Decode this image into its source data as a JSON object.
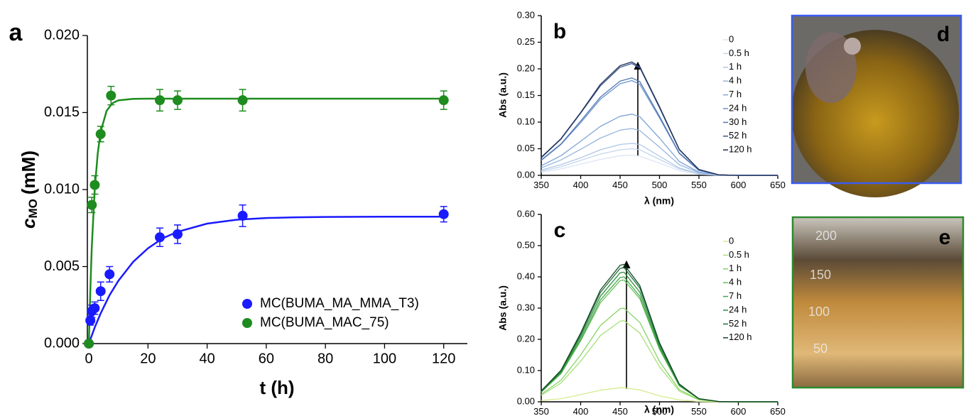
{
  "chart_data": [
    {
      "type": "scatter",
      "panel_label": "a",
      "xlabel": "t (h)",
      "ylabel_var": "c",
      "ylabel_sub": "MO",
      "ylabel_unit": "(mM)",
      "xlim": [
        -0.5,
        128
      ],
      "ylim": [
        0,
        0.02
      ],
      "xticks": [
        0,
        20,
        40,
        60,
        80,
        100,
        120
      ],
      "yticks": [
        {
          "value": 0,
          "label": "0.000"
        },
        {
          "value": 0.005,
          "label": "0.005"
        },
        {
          "value": 0.01,
          "label": "0.010"
        },
        {
          "value": 0.015,
          "label": "0.015"
        },
        {
          "value": 0.02,
          "label": "0.020"
        }
      ],
      "legend": "lower right",
      "series": [
        {
          "name": "MC(BUMA_MA_MMA_T3)",
          "color": "#1a1aff",
          "x": [
            0,
            0.5,
            1,
            2,
            4,
            7,
            24,
            30,
            52,
            120
          ],
          "values": [
            0,
            0.0015,
            0.0021,
            0.0023,
            0.0034,
            0.0045,
            0.0069,
            0.0071,
            0.0083,
            0.0084
          ],
          "errors": [
            0,
            0.0003,
            0.0004,
            0.0004,
            0.0006,
            0.0005,
            0.0006,
            0.0006,
            0.0007,
            0.0005
          ]
        },
        {
          "name": "MC(BUMA_MAC_75)",
          "color": "#1e8c1e",
          "x": [
            0,
            1,
            2,
            4,
            7.5,
            24,
            30,
            52,
            120
          ],
          "values": [
            0,
            0.009,
            0.0103,
            0.0136,
            0.0161,
            0.0158,
            0.0158,
            0.0158,
            0.0158
          ],
          "errors": [
            0,
            0.0005,
            0.0006,
            0.0005,
            0.0006,
            0.0007,
            0.0006,
            0.0007,
            0.0006
          ]
        }
      ],
      "fits": [
        {
          "color": "#1a1aff",
          "x": [
            0,
            2,
            4,
            7,
            10,
            15,
            20,
            25,
            30,
            40,
            50,
            60,
            70,
            80,
            100,
            120
          ],
          "values": [
            0,
            0.00105,
            0.00196,
            0.00314,
            0.00408,
            0.00531,
            0.00619,
            0.00684,
            0.00726,
            0.00779,
            0.00804,
            0.00815,
            0.0082,
            0.00822,
            0.00824,
            0.00824
          ]
        },
        {
          "color": "#1e8c1e",
          "x": [
            0,
            0.5,
            1,
            2,
            3,
            4,
            6,
            8,
            10,
            15,
            20,
            30,
            60,
            120
          ],
          "values": [
            0,
            0.00352,
            0.00625,
            0.01005,
            0.01235,
            0.01375,
            0.01511,
            0.01561,
            0.01579,
            0.01589,
            0.0159,
            0.0159,
            0.0159,
            0.0159
          ]
        }
      ]
    },
    {
      "type": "line",
      "panel_label": "b",
      "xlabel": "λ (nm)",
      "ylabel": "Abs (a.u.)",
      "xlim": [
        350,
        650
      ],
      "ylim": [
        0,
        0.3
      ],
      "xticks": [
        350,
        400,
        450,
        500,
        550,
        600,
        650
      ],
      "yticks": [
        {
          "value": 0,
          "label": "0.00"
        },
        {
          "value": 0.05,
          "label": "0.05"
        },
        {
          "value": 0.1,
          "label": "0.10"
        },
        {
          "value": 0.15,
          "label": "0.15"
        },
        {
          "value": 0.2,
          "label": "0.20"
        },
        {
          "value": 0.25,
          "label": "0.25"
        },
        {
          "value": 0.3,
          "label": "0.30"
        }
      ],
      "legend": "upper right",
      "x": [
        350,
        375,
        400,
        425,
        450,
        465,
        475,
        500,
        525,
        550,
        575,
        600,
        625,
        650
      ],
      "series": [
        {
          "name": "0",
          "color": "#dbe6f5",
          "values": [
            0.006,
            0.012,
            0.021,
            0.03,
            0.037,
            0.038,
            0.036,
            0.023,
            0.009,
            0.002,
            0,
            0,
            0,
            0
          ]
        },
        {
          "name": "0.5 h",
          "color": "#c5d6ee",
          "values": [
            0.008,
            0.016,
            0.028,
            0.04,
            0.048,
            0.05,
            0.048,
            0.03,
            0.012,
            0.003,
            0,
            0,
            0,
            0
          ]
        },
        {
          "name": "1 h",
          "color": "#aec6e6",
          "values": [
            0.01,
            0.02,
            0.033,
            0.048,
            0.058,
            0.06,
            0.058,
            0.036,
            0.014,
            0.003,
            0,
            0,
            0,
            0
          ]
        },
        {
          "name": "4 h",
          "color": "#97b5de",
          "values": [
            0.014,
            0.029,
            0.049,
            0.07,
            0.085,
            0.088,
            0.084,
            0.053,
            0.02,
            0.005,
            0.001,
            0,
            0,
            0
          ]
        },
        {
          "name": "7 h",
          "color": "#7fa4d6",
          "values": [
            0.018,
            0.037,
            0.064,
            0.092,
            0.111,
            0.115,
            0.11,
            0.07,
            0.026,
            0.006,
            0.001,
            0,
            0,
            0
          ]
        },
        {
          "name": "24 h",
          "color": "#6a93cc",
          "values": [
            0.028,
            0.058,
            0.099,
            0.143,
            0.172,
            0.178,
            0.171,
            0.108,
            0.041,
            0.009,
            0.001,
            0,
            0,
            0
          ]
        },
        {
          "name": "30 h",
          "color": "#5077b4",
          "values": [
            0.029,
            0.059,
            0.102,
            0.147,
            0.177,
            0.183,
            0.176,
            0.111,
            0.042,
            0.01,
            0.001,
            0,
            0,
            0
          ]
        },
        {
          "name": "52 h",
          "color": "#3a5a94",
          "values": [
            0.033,
            0.068,
            0.117,
            0.168,
            0.203,
            0.21,
            0.202,
            0.127,
            0.048,
            0.011,
            0.001,
            0,
            0,
            0
          ]
        },
        {
          "name": "120 h",
          "color": "#1f2f55",
          "values": [
            0.034,
            0.069,
            0.118,
            0.171,
            0.206,
            0.213,
            0.204,
            0.129,
            0.049,
            0.011,
            0.001,
            0,
            0,
            0
          ]
        }
      ]
    },
    {
      "type": "line",
      "panel_label": "c",
      "xlabel": "λ (nm)",
      "ylabel": "Abs (a.u.)",
      "xlim": [
        350,
        650
      ],
      "ylim": [
        0,
        0.6
      ],
      "xticks": [
        350,
        400,
        450,
        500,
        550,
        600,
        650
      ],
      "yticks": [
        {
          "value": 0,
          "label": "0.00"
        },
        {
          "value": 0.1,
          "label": "0.10"
        },
        {
          "value": 0.2,
          "label": "0.20"
        },
        {
          "value": 0.3,
          "label": "0.30"
        },
        {
          "value": 0.4,
          "label": "0.40"
        },
        {
          "value": 0.5,
          "label": "0.50"
        },
        {
          "value": 0.6,
          "label": "0.60"
        }
      ],
      "legend": "upper right",
      "x": [
        350,
        375,
        400,
        425,
        450,
        455,
        475,
        500,
        525,
        550,
        575,
        600,
        625,
        650
      ],
      "series": [
        {
          "name": "0",
          "color": "#d6ec8e",
          "values": [
            0.004,
            0.01,
            0.023,
            0.037,
            0.045,
            0.045,
            0.038,
            0.019,
            0.006,
            0.001,
            0,
            0,
            0,
            0
          ]
        },
        {
          "name": "0.5 h",
          "color": "#a8e07a",
          "values": [
            0.021,
            0.06,
            0.13,
            0.212,
            0.258,
            0.26,
            0.22,
            0.112,
            0.034,
            0.006,
            0.001,
            0,
            0,
            0
          ]
        },
        {
          "name": "1 h",
          "color": "#86d466",
          "values": [
            0.024,
            0.069,
            0.15,
            0.244,
            0.298,
            0.3,
            0.254,
            0.129,
            0.039,
            0.007,
            0.001,
            0,
            0,
            0
          ]
        },
        {
          "name": "4 h",
          "color": "#63c255",
          "values": [
            0.031,
            0.09,
            0.195,
            0.317,
            0.388,
            0.39,
            0.33,
            0.168,
            0.051,
            0.009,
            0.001,
            0,
            0,
            0
          ]
        },
        {
          "name": "7 h",
          "color": "#45a84a",
          "values": [
            0.032,
            0.092,
            0.2,
            0.326,
            0.398,
            0.4,
            0.338,
            0.172,
            0.052,
            0.009,
            0.001,
            0,
            0,
            0
          ]
        },
        {
          "name": "24 h",
          "color": "#2f8e40",
          "values": [
            0.033,
            0.095,
            0.208,
            0.338,
            0.413,
            0.415,
            0.351,
            0.178,
            0.054,
            0.01,
            0.001,
            0,
            0,
            0
          ]
        },
        {
          "name": "52 h",
          "color": "#1f6f36",
          "values": [
            0.034,
            0.099,
            0.215,
            0.35,
            0.427,
            0.43,
            0.364,
            0.185,
            0.056,
            0.01,
            0.001,
            0,
            0,
            0
          ]
        },
        {
          "name": "120 h",
          "color": "#144a26",
          "values": [
            0.035,
            0.101,
            0.22,
            0.358,
            0.437,
            0.44,
            0.372,
            0.189,
            0.057,
            0.01,
            0.001,
            0,
            0,
            0
          ]
        }
      ]
    }
  ],
  "photos": [
    {
      "label": "d"
    },
    {
      "label": "e",
      "marks": [
        "200",
        "150",
        "100",
        "50"
      ]
    }
  ]
}
